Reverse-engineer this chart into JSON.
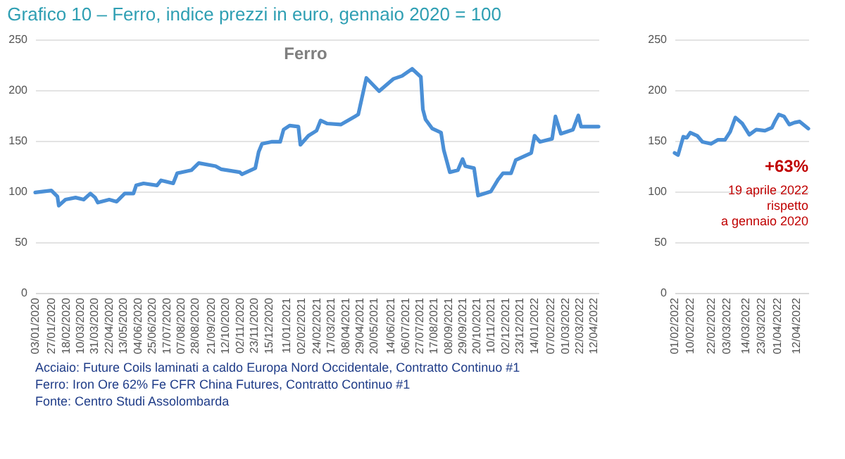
{
  "chart_data": [
    {
      "type": "line",
      "title": "Grafico 10 – Ferro, indice prezzi in euro, gennaio 2020 = 100",
      "series": [
        {
          "name": "Ferro",
          "color": "#4a8fd6",
          "x": [
            "2020-01-03",
            "2020-01-27",
            "2020-02-05",
            "2020-02-07",
            "2020-02-17",
            "2020-03-03",
            "2020-03-15",
            "2020-03-25",
            "2020-04-01",
            "2020-04-05",
            "2020-04-22",
            "2020-05-03",
            "2020-05-15",
            "2020-05-28",
            "2020-06-01",
            "2020-06-12",
            "2020-07-02",
            "2020-07-08",
            "2020-07-26",
            "2020-08-01",
            "2020-08-22",
            "2020-09-02",
            "2020-09-27",
            "2020-10-05",
            "2020-11-02",
            "2020-11-05",
            "2020-11-25",
            "2020-11-30",
            "2020-12-05",
            "2020-12-19",
            "2021-01-01",
            "2021-01-06",
            "2021-01-15",
            "2021-01-28",
            "2021-01-31",
            "2021-02-12",
            "2021-02-24",
            "2021-03-02",
            "2021-03-12",
            "2021-04-01",
            "2021-04-22",
            "2021-04-27",
            "2021-05-09",
            "2021-05-28",
            "2021-06-18",
            "2021-07-01",
            "2021-07-16",
            "2021-07-29",
            "2021-08-01",
            "2021-08-05",
            "2021-08-15",
            "2021-08-28",
            "2021-09-01",
            "2021-09-10",
            "2021-09-22",
            "2021-09-29",
            "2021-10-03",
            "2021-10-16",
            "2021-10-22",
            "2021-11-10",
            "2021-11-21",
            "2021-11-28",
            "2021-12-10",
            "2021-12-17",
            "2022-01-09",
            "2022-01-14",
            "2022-01-22",
            "2022-02-09",
            "2022-02-14",
            "2022-02-22",
            "2022-03-12",
            "2022-03-20",
            "2022-03-24",
            "2022-04-19"
          ],
          "values": [
            99,
            101,
            95,
            86,
            92,
            94,
            92,
            98,
            94,
            89,
            92,
            90,
            98,
            98,
            106,
            108,
            106,
            111,
            108,
            118,
            121,
            128,
            125,
            122,
            119,
            117,
            123,
            139,
            147,
            149,
            149,
            161,
            165,
            164,
            146,
            155,
            160,
            170,
            167,
            166,
            174,
            176,
            212,
            199,
            211,
            214,
            221,
            213,
            181,
            171,
            162,
            158,
            141,
            119,
            121,
            132,
            125,
            123,
            96,
            100,
            112,
            118,
            118,
            131,
            138,
            155,
            149,
            152,
            174,
            157,
            161,
            175,
            164,
            164
          ]
        }
      ],
      "xlim": [
        "2020-01-03",
        "2022-04-19"
      ],
      "xticks": [
        {
          "value": "2020-01-03",
          "label": "03/01/2020"
        },
        {
          "value": "2020-01-27",
          "label": "27/01/2020"
        },
        {
          "value": "2020-02-18",
          "label": "18/02/2020"
        },
        {
          "value": "2020-03-10",
          "label": "10/03/2020"
        },
        {
          "value": "2020-03-31",
          "label": "31/03/2020"
        },
        {
          "value": "2020-04-22",
          "label": "22/04/2020"
        },
        {
          "value": "2020-05-13",
          "label": "13/05/2020"
        },
        {
          "value": "2020-06-04",
          "label": "04/06/2020"
        },
        {
          "value": "2020-06-25",
          "label": "25/06/2020"
        },
        {
          "value": "2020-07-17",
          "label": "17/07/2020"
        },
        {
          "value": "2020-08-07",
          "label": "07/08/2020"
        },
        {
          "value": "2020-08-28",
          "label": "28/08/2020"
        },
        {
          "value": "2020-09-21",
          "label": "21/09/2020"
        },
        {
          "value": "2020-10-12",
          "label": "12/10/2020"
        },
        {
          "value": "2020-11-02",
          "label": "02/11/2020"
        },
        {
          "value": "2020-11-23",
          "label": "23/11/2020"
        },
        {
          "value": "2020-12-15",
          "label": "15/12/2020"
        },
        {
          "value": "2021-01-11",
          "label": "11/01/2021"
        },
        {
          "value": "2021-02-02",
          "label": "02/02/2021"
        },
        {
          "value": "2021-02-24",
          "label": "24/02/2021"
        },
        {
          "value": "2021-03-17",
          "label": "17/03/2021"
        },
        {
          "value": "2021-04-08",
          "label": "08/04/2021"
        },
        {
          "value": "2021-04-29",
          "label": "29/04/2021"
        },
        {
          "value": "2021-05-20",
          "label": "20/05/2021"
        },
        {
          "value": "2021-06-14",
          "label": "14/06/2021"
        },
        {
          "value": "2021-07-06",
          "label": "06/07/2021"
        },
        {
          "value": "2021-07-27",
          "label": "27/07/2021"
        },
        {
          "value": "2021-08-17",
          "label": "17/08/2021"
        },
        {
          "value": "2021-09-08",
          "label": "08/09/2021"
        },
        {
          "value": "2021-09-29",
          "label": "29/09/2021"
        },
        {
          "value": "2021-10-20",
          "label": "20/10/2021"
        },
        {
          "value": "2021-11-10",
          "label": "10/11/2021"
        },
        {
          "value": "2021-12-02",
          "label": "02/12/2021"
        },
        {
          "value": "2021-12-23",
          "label": "23/12/2021"
        },
        {
          "value": "2022-01-14",
          "label": "14/01/2022"
        },
        {
          "value": "2022-02-07",
          "label": "07/02/2022"
        },
        {
          "value": "2022-03-01",
          "label": "01/03/2022"
        },
        {
          "value": "2022-03-22",
          "label": "22/03/2022"
        },
        {
          "value": "2022-04-12",
          "label": "12/04/2022"
        }
      ],
      "ylim": [
        0,
        250
      ],
      "yticks": [
        0,
        50,
        100,
        150,
        200,
        250
      ],
      "grid": "y",
      "annotations": [
        "Acciaio: Future Coils laminati a caldo Europa Nord Occidentale, Contratto Continuo #1",
        "Ferro: Iron Ore 62% Fe CFR China Futures, Contratto Continuo #1",
        "Fonte: Centro Studi Assolombarda"
      ]
    },
    {
      "type": "line",
      "series": [
        {
          "color": "#4a8fd6",
          "x": [
            "2022-02-01",
            "2022-02-03",
            "2022-02-06",
            "2022-02-08",
            "2022-02-10",
            "2022-02-14",
            "2022-02-17",
            "2022-02-22",
            "2022-02-26",
            "2022-03-02",
            "2022-03-05",
            "2022-03-08",
            "2022-03-12",
            "2022-03-16",
            "2022-03-20",
            "2022-03-25",
            "2022-03-29",
            "2022-03-31",
            "2022-04-02",
            "2022-04-05",
            "2022-04-08",
            "2022-04-11",
            "2022-04-14",
            "2022-04-19"
          ],
          "values": [
            138,
            136,
            154,
            153,
            158,
            155,
            149,
            147,
            151,
            151,
            159,
            173,
            167,
            156,
            161,
            160,
            163,
            170,
            176,
            174,
            166,
            168,
            169,
            162
          ]
        }
      ],
      "xlim": [
        "2022-02-01",
        "2022-04-19"
      ],
      "xticks": [
        {
          "value": "2022-02-01",
          "label": "01/02/2022"
        },
        {
          "value": "2022-02-10",
          "label": "10/02/2022"
        },
        {
          "value": "2022-02-22",
          "label": "22/02/2022"
        },
        {
          "value": "2022-03-03",
          "label": "03/03/2022"
        },
        {
          "value": "2022-03-14",
          "label": "14/03/2022"
        },
        {
          "value": "2022-03-23",
          "label": "23/03/2022"
        },
        {
          "value": "2022-04-01",
          "label": "01/04/2022"
        },
        {
          "value": "2022-04-12",
          "label": "12/04/2022"
        }
      ],
      "ylim": [
        0,
        250
      ],
      "yticks": [
        0,
        50,
        100,
        150,
        200,
        250
      ],
      "grid": "y",
      "annotations": [
        "+63%",
        "19 aprile 2022",
        "rispetto",
        "a gennaio 2020"
      ]
    }
  ]
}
